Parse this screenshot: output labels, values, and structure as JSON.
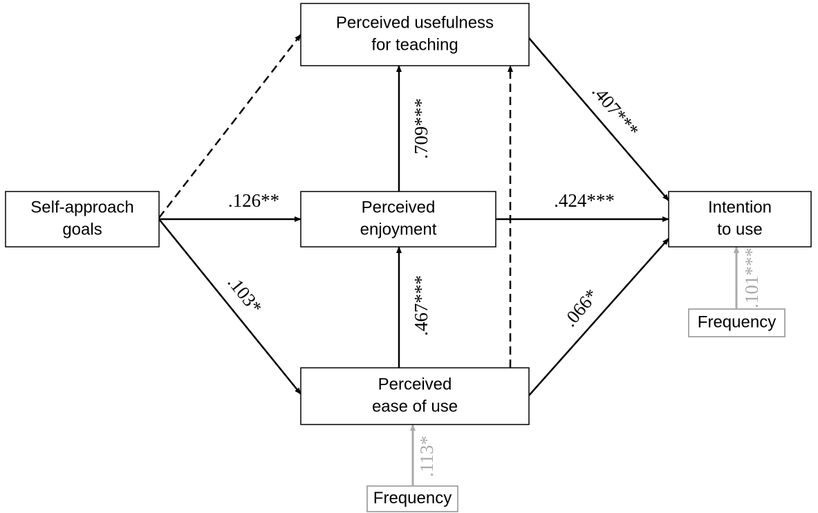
{
  "nodes": [
    {
      "label": [
        "Self-approach",
        "goals"
      ]
    },
    {
      "label": [
        "Perceived usefulness",
        "for teaching"
      ]
    },
    {
      "label": [
        "Perceived",
        "enjoyment"
      ]
    },
    {
      "label": [
        "Perceived",
        "ease of use"
      ]
    },
    {
      "label": [
        "Intention",
        "to use"
      ]
    },
    {
      "label": [
        "Frequency"
      ]
    },
    {
      "label": [
        "Frequency"
      ]
    }
  ],
  "edges": [
    {
      "from": 0,
      "to": 1
    },
    {
      "from": 0,
      "to": 2,
      "label": ".126**"
    },
    {
      "from": 0,
      "to": 3,
      "label": ".103*"
    },
    {
      "from": 2,
      "to": 1,
      "label": ".709***"
    },
    {
      "from": 3,
      "to": 2,
      "label": ".467***"
    },
    {
      "from": 3,
      "to": 1
    },
    {
      "from": 2,
      "to": 4,
      "label": ".424***"
    },
    {
      "from": 1,
      "to": 4,
      "label": ".407***"
    },
    {
      "from": 3,
      "to": 4,
      "label": ".066*"
    },
    {
      "from": 5,
      "to": 4,
      "label": ".101***"
    },
    {
      "from": 6,
      "to": 3,
      "label": ".113*"
    }
  ]
}
